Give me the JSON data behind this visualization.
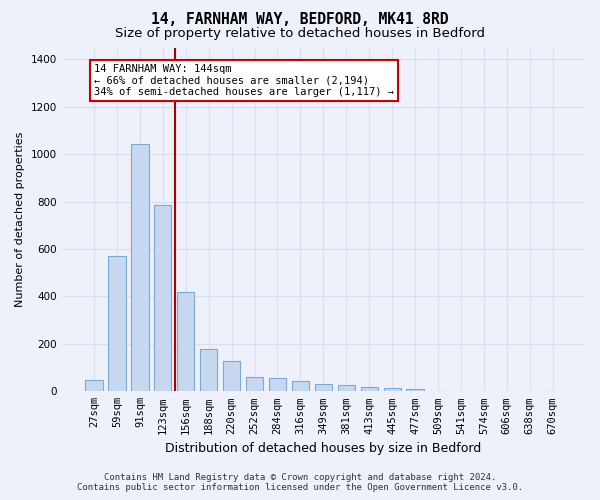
{
  "title": "14, FARNHAM WAY, BEDFORD, MK41 8RD",
  "subtitle": "Size of property relative to detached houses in Bedford",
  "xlabel": "Distribution of detached houses by size in Bedford",
  "ylabel": "Number of detached properties",
  "categories": [
    "27sqm",
    "59sqm",
    "91sqm",
    "123sqm",
    "156sqm",
    "188sqm",
    "220sqm",
    "252sqm",
    "284sqm",
    "316sqm",
    "349sqm",
    "381sqm",
    "413sqm",
    "445sqm",
    "477sqm",
    "509sqm",
    "541sqm",
    "574sqm",
    "606sqm",
    "638sqm",
    "670sqm"
  ],
  "values": [
    47,
    572,
    1042,
    786,
    420,
    178,
    128,
    60,
    58,
    44,
    30,
    28,
    20,
    15,
    10,
    0,
    0,
    0,
    0,
    0,
    0
  ],
  "bar_color": "#c5d8f0",
  "bar_edge_color": "#7aaad4",
  "vline_color": "#aa0000",
  "vline_pos": 3.55,
  "annotation_line1": "14 FARNHAM WAY: 144sqm",
  "annotation_line2": "← 66% of detached houses are smaller (2,194)",
  "annotation_line3": "34% of semi-detached houses are larger (1,117) →",
  "annotation_box_fc": "#ffffff",
  "annotation_box_ec": "#cc0000",
  "ylim": [
    0,
    1450
  ],
  "yticks": [
    0,
    200,
    400,
    600,
    800,
    1000,
    1200,
    1400
  ],
  "grid_color": "#d8dff0",
  "bg_color": "#eef0fa",
  "footer_line1": "Contains HM Land Registry data © Crown copyright and database right 2024.",
  "footer_line2": "Contains public sector information licensed under the Open Government Licence v3.0.",
  "title_fontsize": 10.5,
  "subtitle_fontsize": 9.5,
  "ylabel_fontsize": 8,
  "xlabel_fontsize": 9,
  "tick_fontsize": 7.5,
  "footer_fontsize": 6.5
}
